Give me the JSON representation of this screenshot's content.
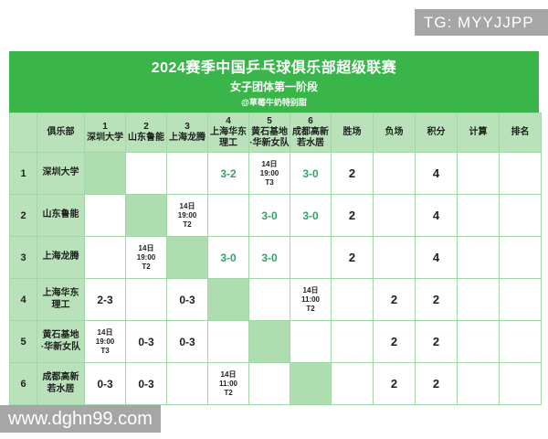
{
  "watermarks": {
    "top_right": "TG: MYYJJPP",
    "bottom_left": "www.dghn99.com"
  },
  "header": {
    "title": "2024赛季中国乒乓球俱乐部超级联赛",
    "subtitle": "女子团体第一阶段",
    "credit": "@草莓牛奶特别甜"
  },
  "colors": {
    "band_green": "#3ab54a",
    "label_cell_green": "#b9e2ba",
    "self_cell_green": "#aeddb0",
    "border_green": "#a3d6a6",
    "win_score_text": "#35a06b",
    "watermark_gray": "#a6a6a6"
  },
  "table": {
    "headers": [
      {
        "num": "",
        "name": ""
      },
      {
        "num": "",
        "name": "俱乐部"
      },
      {
        "num": "1",
        "name": "深圳大学"
      },
      {
        "num": "2",
        "name": "山东鲁能"
      },
      {
        "num": "3",
        "name": "上海龙腾"
      },
      {
        "num": "4",
        "name": "上海华东\n理工"
      },
      {
        "num": "5",
        "name": "黄石基地\n·华新女队"
      },
      {
        "num": "6",
        "name": "成都高新\n若水居"
      },
      {
        "num": "",
        "name": "胜场"
      },
      {
        "num": "",
        "name": "负场"
      },
      {
        "num": "",
        "name": "积分"
      },
      {
        "num": "",
        "name": "计算"
      },
      {
        "num": "",
        "name": "排名"
      }
    ],
    "rows": [
      {
        "index": "1",
        "club": "深圳大学",
        "cells": [
          {
            "type": "self"
          },
          {
            "type": "empty"
          },
          {
            "type": "empty"
          },
          {
            "type": "win",
            "text": "3-2"
          },
          {
            "type": "date",
            "lines": [
              "14日",
              "19:00",
              "T3"
            ]
          },
          {
            "type": "win",
            "text": "3-0"
          }
        ],
        "wins": "2",
        "losses": "",
        "points": "4",
        "calc": "",
        "rank": ""
      },
      {
        "index": "2",
        "club": "山东鲁能",
        "cells": [
          {
            "type": "empty"
          },
          {
            "type": "self"
          },
          {
            "type": "date",
            "lines": [
              "14日",
              "19:00",
              "T2"
            ]
          },
          {
            "type": "empty"
          },
          {
            "type": "win",
            "text": "3-0"
          },
          {
            "type": "win",
            "text": "3-0"
          }
        ],
        "wins": "2",
        "losses": "",
        "points": "4",
        "calc": "",
        "rank": ""
      },
      {
        "index": "3",
        "club": "上海龙腾",
        "cells": [
          {
            "type": "empty"
          },
          {
            "type": "date",
            "lines": [
              "14日",
              "19:00",
              "T2"
            ]
          },
          {
            "type": "self"
          },
          {
            "type": "win",
            "text": "3-0"
          },
          {
            "type": "win",
            "text": "3-0"
          },
          {
            "type": "empty"
          }
        ],
        "wins": "2",
        "losses": "",
        "points": "4",
        "calc": "",
        "rank": ""
      },
      {
        "index": "4",
        "club": "上海华东\n理工",
        "cells": [
          {
            "type": "loss",
            "text": "2-3"
          },
          {
            "type": "empty"
          },
          {
            "type": "loss",
            "text": "0-3"
          },
          {
            "type": "self"
          },
          {
            "type": "empty"
          },
          {
            "type": "date",
            "lines": [
              "14日",
              "11:00",
              "T2"
            ]
          }
        ],
        "wins": "",
        "losses": "2",
        "points": "2",
        "calc": "",
        "rank": ""
      },
      {
        "index": "5",
        "club": "黄石基地\n·华新女队",
        "cells": [
          {
            "type": "date",
            "lines": [
              "14日",
              "19:00",
              "T3"
            ]
          },
          {
            "type": "loss",
            "text": "0-3"
          },
          {
            "type": "loss",
            "text": "0-3"
          },
          {
            "type": "empty"
          },
          {
            "type": "self"
          },
          {
            "type": "empty"
          }
        ],
        "wins": "",
        "losses": "2",
        "points": "2",
        "calc": "",
        "rank": ""
      },
      {
        "index": "6",
        "club": "成都高新\n若水居",
        "cells": [
          {
            "type": "loss",
            "text": "0-3"
          },
          {
            "type": "loss",
            "text": "0-3"
          },
          {
            "type": "empty"
          },
          {
            "type": "date",
            "lines": [
              "14日",
              "11:00",
              "T2"
            ]
          },
          {
            "type": "empty"
          },
          {
            "type": "self"
          }
        ],
        "wins": "",
        "losses": "2",
        "points": "2",
        "calc": "",
        "rank": ""
      }
    ]
  }
}
